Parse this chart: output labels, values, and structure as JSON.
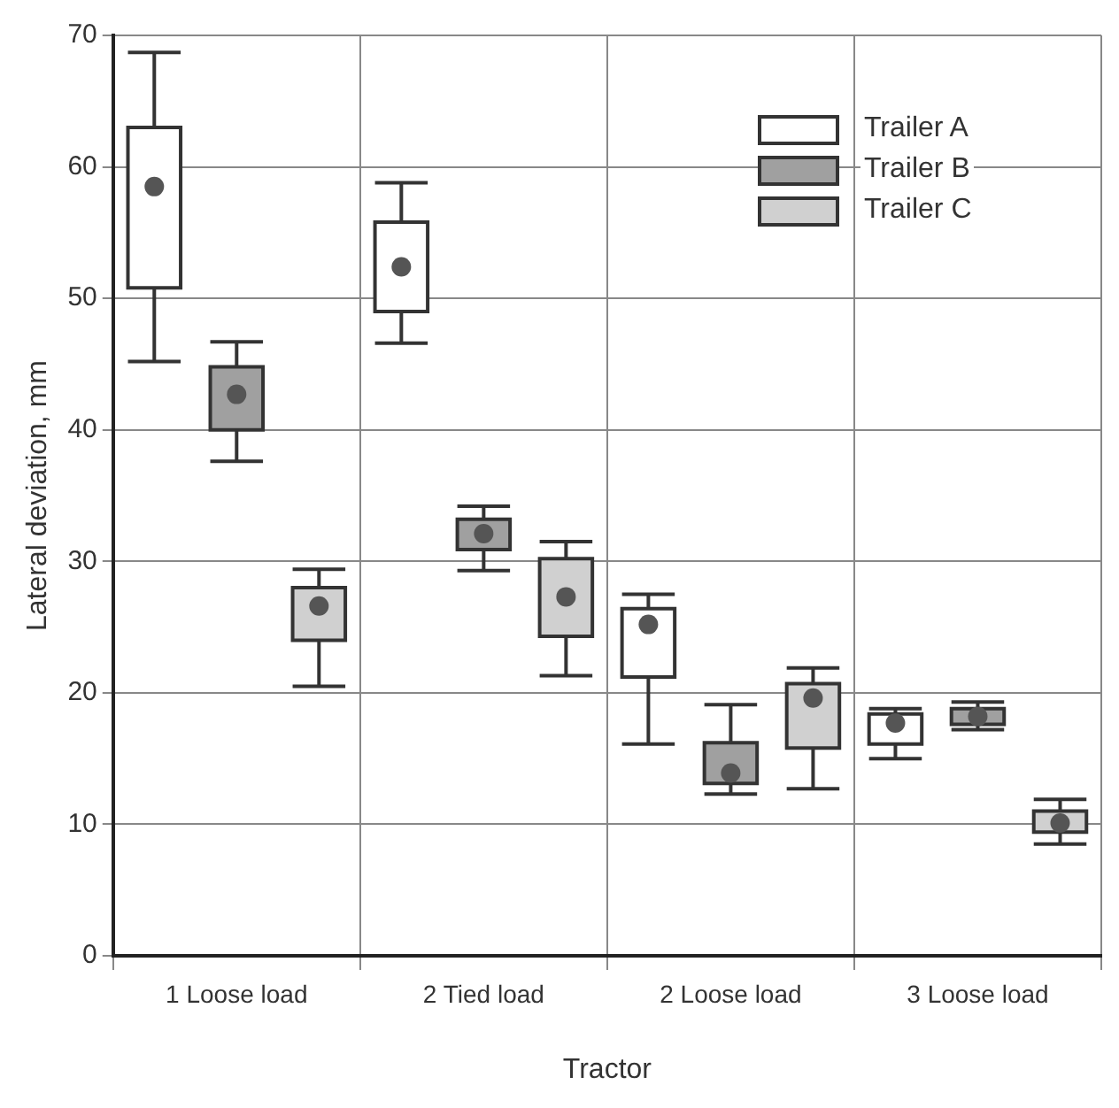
{
  "chart_data": {
    "type": "box",
    "xlabel": "Tractor",
    "ylabel": "Lateral deviation, mm",
    "categories": [
      "1 Loose load",
      "2 Tied load",
      "2 Loose load",
      "3 Loose load"
    ],
    "ylim": [
      0,
      70
    ],
    "yticks": [
      0,
      10,
      20,
      30,
      40,
      50,
      60,
      70
    ],
    "grid": true,
    "legend": "top right",
    "series": [
      {
        "name": "Trailer A",
        "color": "#ffffff",
        "boxes": [
          {
            "low": 45.2,
            "q1": 50.8,
            "median": 58.5,
            "q3": 63.0,
            "high": 68.7
          },
          {
            "low": 46.6,
            "q1": 49.0,
            "median": 52.4,
            "q3": 55.8,
            "high": 58.8
          },
          {
            "low": 16.1,
            "q1": 21.2,
            "median": 25.2,
            "q3": 26.4,
            "high": 27.5
          },
          {
            "low": 15.0,
            "q1": 16.1,
            "median": 17.7,
            "q3": 18.4,
            "high": 18.8
          }
        ]
      },
      {
        "name": "Trailer B",
        "color": "#a0a0a0",
        "boxes": [
          {
            "low": 37.6,
            "q1": 40.0,
            "median": 42.7,
            "q3": 44.8,
            "high": 46.7
          },
          {
            "low": 29.3,
            "q1": 30.9,
            "median": 32.1,
            "q3": 33.2,
            "high": 34.2
          },
          {
            "low": 12.3,
            "q1": 13.1,
            "median": 13.9,
            "q3": 16.2,
            "high": 19.1
          },
          {
            "low": 17.2,
            "q1": 17.6,
            "median": 18.2,
            "q3": 18.8,
            "high": 19.3
          }
        ]
      },
      {
        "name": "Trailer C",
        "color": "#d0d0d0",
        "boxes": [
          {
            "low": 20.5,
            "q1": 24.0,
            "median": 26.6,
            "q3": 28.0,
            "high": 29.4
          },
          {
            "low": 21.3,
            "q1": 24.3,
            "median": 27.3,
            "q3": 30.2,
            "high": 31.5
          },
          {
            "low": 12.7,
            "q1": 15.8,
            "median": 19.6,
            "q3": 20.7,
            "high": 21.9
          },
          {
            "low": 8.5,
            "q1": 9.4,
            "median": 10.1,
            "q3": 11.0,
            "high": 11.9
          }
        ]
      }
    ]
  }
}
